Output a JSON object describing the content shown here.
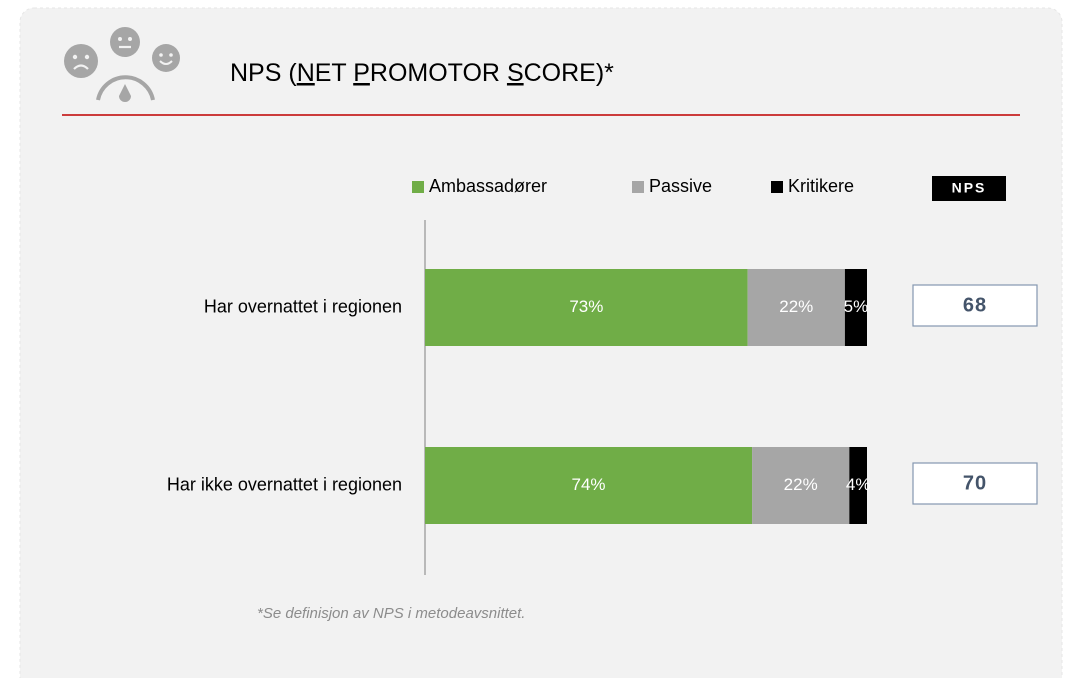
{
  "chart_data": {
    "type": "bar",
    "orientation": "horizontal",
    "stacked": true,
    "title": "NPS (NET PROMOTOR SCORE)*",
    "categories": [
      "Har overnattet i regionen",
      "Har ikke overnattet i regionen"
    ],
    "series": [
      {
        "name": "Ambassadører",
        "color": "#70ad47",
        "values": [
          73,
          74
        ],
        "value_labels": [
          "73%",
          "74%"
        ]
      },
      {
        "name": "Passive",
        "color": "#a6a6a6",
        "values": [
          22,
          22
        ],
        "value_labels": [
          "22%",
          "22%"
        ]
      },
      {
        "name": "Kritikere",
        "color": "#000000",
        "values": [
          5,
          4
        ],
        "value_labels": [
          "5%",
          "4%"
        ]
      }
    ],
    "xlim": [
      0,
      100
    ],
    "nps_label": "NPS",
    "nps": [
      68,
      70
    ],
    "footnote": "*Se definisjon av NPS i metodeavsnittet."
  }
}
